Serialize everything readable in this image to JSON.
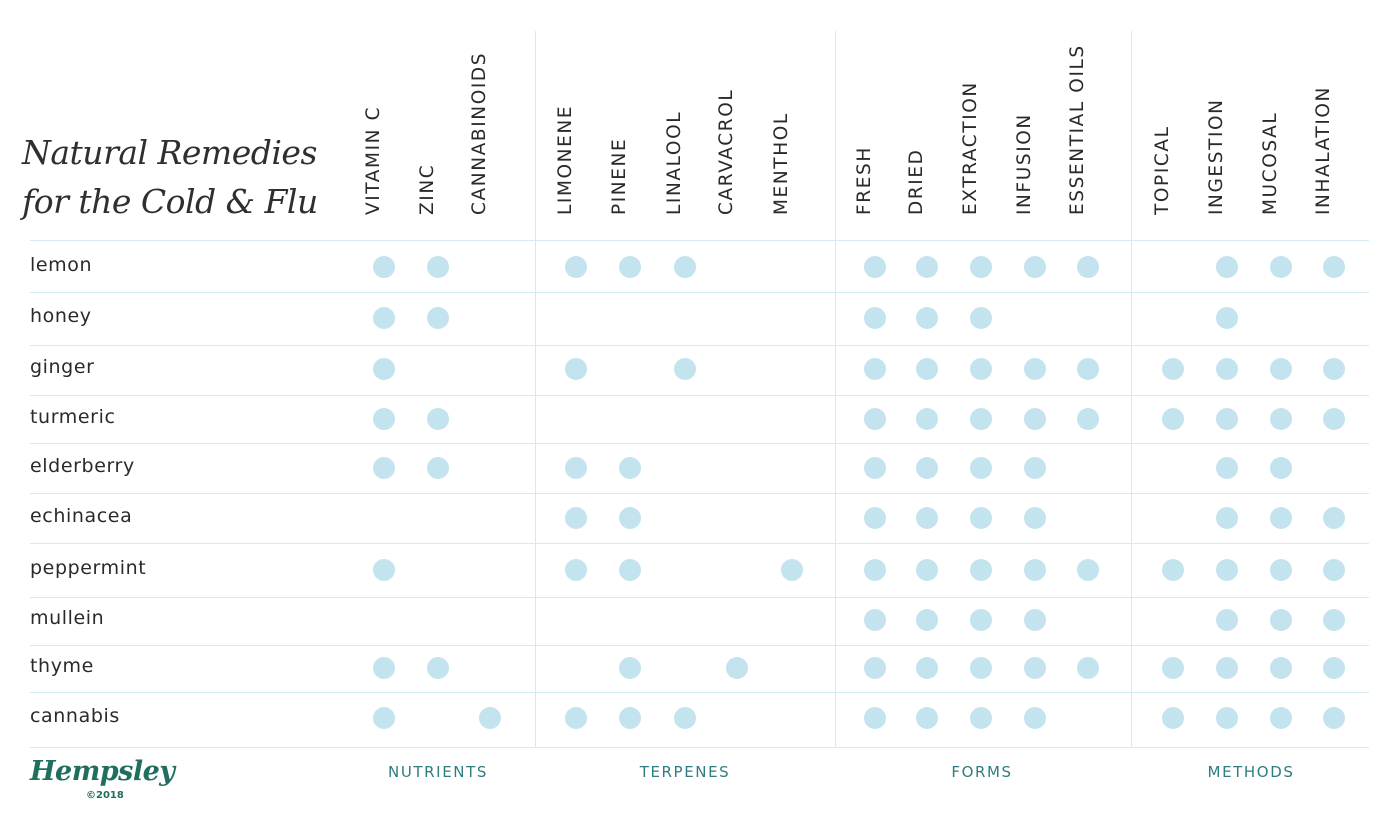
{
  "title": {
    "line1": "Natural Remedies",
    "line2": "for the Cold & Flu"
  },
  "columns": [
    {
      "key": "vitamin_c",
      "label": "VITAMIN C",
      "group": "nutrients"
    },
    {
      "key": "zinc",
      "label": "ZINC",
      "group": "nutrients"
    },
    {
      "key": "cannabinoids",
      "label": "CANNABINOIDS",
      "group": "nutrients"
    },
    {
      "key": "limonene",
      "label": "LIMONENE",
      "group": "terpenes"
    },
    {
      "key": "pinene",
      "label": "PINENE",
      "group": "terpenes"
    },
    {
      "key": "linalool",
      "label": "LINALOOL",
      "group": "terpenes"
    },
    {
      "key": "carvacrol",
      "label": "CARVACROL",
      "group": "terpenes"
    },
    {
      "key": "menthol",
      "label": "MENTHOL",
      "group": "terpenes"
    },
    {
      "key": "fresh",
      "label": "FRESH",
      "group": "forms"
    },
    {
      "key": "dried",
      "label": "DRIED",
      "group": "forms"
    },
    {
      "key": "extraction",
      "label": "EXTRACTION",
      "group": "forms"
    },
    {
      "key": "infusion",
      "label": "INFUSION",
      "group": "forms"
    },
    {
      "key": "essential_oils",
      "label": "ESSENTIAL OILS",
      "group": "forms"
    },
    {
      "key": "topical",
      "label": "TOPICAL",
      "group": "methods"
    },
    {
      "key": "ingestion",
      "label": "INGESTION",
      "group": "methods"
    },
    {
      "key": "mucosal",
      "label": "MUCOSAL",
      "group": "methods"
    },
    {
      "key": "inhalation",
      "label": "INHALATION",
      "group": "methods"
    }
  ],
  "groups": [
    {
      "key": "nutrients",
      "label": "NUTRIENTS"
    },
    {
      "key": "terpenes",
      "label": "TERPENES"
    },
    {
      "key": "forms",
      "label": "FORMS"
    },
    {
      "key": "methods",
      "label": "METHODS"
    }
  ],
  "rows": [
    {
      "label": "lemon",
      "marks": [
        1,
        1,
        0,
        1,
        1,
        1,
        0,
        0,
        1,
        1,
        1,
        1,
        1,
        0,
        1,
        1,
        1
      ]
    },
    {
      "label": "honey",
      "marks": [
        1,
        1,
        0,
        0,
        0,
        0,
        0,
        0,
        1,
        1,
        1,
        0,
        0,
        0,
        1,
        0,
        0
      ]
    },
    {
      "label": "ginger",
      "marks": [
        1,
        0,
        0,
        1,
        0,
        1,
        0,
        0,
        1,
        1,
        1,
        1,
        1,
        1,
        1,
        1,
        1
      ]
    },
    {
      "label": "turmeric",
      "marks": [
        1,
        1,
        0,
        0,
        0,
        0,
        0,
        0,
        1,
        1,
        1,
        1,
        1,
        1,
        1,
        1,
        1
      ]
    },
    {
      "label": "elderberry",
      "marks": [
        1,
        1,
        0,
        1,
        1,
        0,
        0,
        0,
        1,
        1,
        1,
        1,
        0,
        0,
        1,
        1,
        0
      ]
    },
    {
      "label": "echinacea",
      "marks": [
        0,
        0,
        0,
        1,
        1,
        0,
        0,
        0,
        1,
        1,
        1,
        1,
        0,
        0,
        1,
        1,
        1
      ]
    },
    {
      "label": "peppermint",
      "marks": [
        1,
        0,
        0,
        1,
        1,
        0,
        0,
        1,
        1,
        1,
        1,
        1,
        1,
        1,
        1,
        1,
        1
      ]
    },
    {
      "label": "mullein",
      "marks": [
        0,
        0,
        0,
        0,
        0,
        0,
        0,
        0,
        1,
        1,
        1,
        1,
        0,
        0,
        1,
        1,
        1
      ]
    },
    {
      "label": "thyme",
      "marks": [
        1,
        1,
        0,
        0,
        1,
        0,
        1,
        0,
        1,
        1,
        1,
        1,
        1,
        1,
        1,
        1,
        1
      ]
    },
    {
      "label": "cannabis",
      "marks": [
        1,
        0,
        1,
        1,
        1,
        1,
        0,
        0,
        1,
        1,
        1,
        1,
        0,
        1,
        1,
        1,
        1
      ]
    }
  ],
  "colors": {
    "dot": "#c3e3ef",
    "grid_line": "#d6eaf3",
    "group_label": "#2e7d80",
    "brand": "#1f6e5e"
  },
  "logo": {
    "word": "Hempsley",
    "copyright": "©2018"
  }
}
